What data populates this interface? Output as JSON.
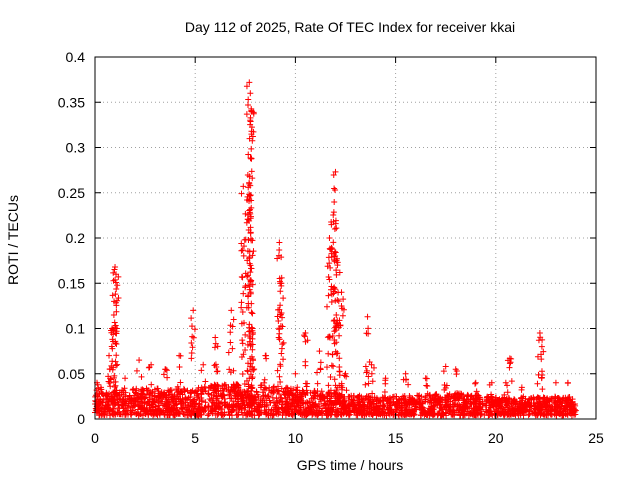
{
  "chart_data": {
    "type": "scatter",
    "title": "Day 112 of 2025, Rate Of TEC Index for receiver kkai",
    "xlabel": "GPS time / hours",
    "ylabel": "ROTI / TECUs",
    "xlim": [
      0,
      25
    ],
    "ylim": [
      0,
      0.4
    ],
    "x_ticks": [
      "0",
      "5",
      "10",
      "15",
      "20",
      "25"
    ],
    "y_ticks": [
      "0",
      "0.05",
      "0.1",
      "0.15",
      "0.2",
      "0.25",
      "0.3",
      "0.35",
      "0.4"
    ],
    "grid": true,
    "marker": "plus",
    "color": "#ff0000",
    "peaks": [
      {
        "x": 0.1,
        "y": 0.04
      },
      {
        "x": 0.3,
        "y": 0.035
      },
      {
        "x": 0.7,
        "y": 0.07
      },
      {
        "x": 0.85,
        "y": 0.1
      },
      {
        "x": 1.0,
        "y": 0.168
      },
      {
        "x": 1.05,
        "y": 0.16
      },
      {
        "x": 0.95,
        "y": 0.13
      },
      {
        "x": 1.5,
        "y": 0.045
      },
      {
        "x": 2.2,
        "y": 0.065
      },
      {
        "x": 2.8,
        "y": 0.06
      },
      {
        "x": 3.5,
        "y": 0.055
      },
      {
        "x": 4.2,
        "y": 0.07
      },
      {
        "x": 4.9,
        "y": 0.12
      },
      {
        "x": 5.4,
        "y": 0.06
      },
      {
        "x": 6.0,
        "y": 0.09
      },
      {
        "x": 6.8,
        "y": 0.12
      },
      {
        "x": 7.4,
        "y": 0.257
      },
      {
        "x": 7.7,
        "y": 0.372
      },
      {
        "x": 7.75,
        "y": 0.36
      },
      {
        "x": 7.8,
        "y": 0.34
      },
      {
        "x": 7.85,
        "y": 0.1
      },
      {
        "x": 8.5,
        "y": 0.07
      },
      {
        "x": 9.2,
        "y": 0.195
      },
      {
        "x": 9.3,
        "y": 0.15
      },
      {
        "x": 10.0,
        "y": 0.05
      },
      {
        "x": 10.5,
        "y": 0.095
      },
      {
        "x": 11.2,
        "y": 0.075
      },
      {
        "x": 11.7,
        "y": 0.2
      },
      {
        "x": 11.9,
        "y": 0.218
      },
      {
        "x": 12.0,
        "y": 0.273
      },
      {
        "x": 12.1,
        "y": 0.17
      },
      {
        "x": 12.3,
        "y": 0.14
      },
      {
        "x": 12.5,
        "y": 0.05
      },
      {
        "x": 13.6,
        "y": 0.113
      },
      {
        "x": 13.8,
        "y": 0.06
      },
      {
        "x": 14.5,
        "y": 0.045
      },
      {
        "x": 15.5,
        "y": 0.05
      },
      {
        "x": 16.5,
        "y": 0.045
      },
      {
        "x": 17.5,
        "y": 0.058
      },
      {
        "x": 18.0,
        "y": 0.055
      },
      {
        "x": 19.0,
        "y": 0.04
      },
      {
        "x": 19.8,
        "y": 0.04
      },
      {
        "x": 20.5,
        "y": 0.04
      },
      {
        "x": 20.7,
        "y": 0.067
      },
      {
        "x": 21.3,
        "y": 0.035
      },
      {
        "x": 22.2,
        "y": 0.095
      },
      {
        "x": 22.3,
        "y": 0.08
      },
      {
        "x": 23.0,
        "y": 0.04
      },
      {
        "x": 23.6,
        "y": 0.04
      }
    ],
    "baseline": [
      {
        "x": 0.0,
        "y": 0.025
      },
      {
        "x": 2.0,
        "y": 0.03
      },
      {
        "x": 4.0,
        "y": 0.03
      },
      {
        "x": 6.0,
        "y": 0.035
      },
      {
        "x": 8.0,
        "y": 0.035
      },
      {
        "x": 10.0,
        "y": 0.03
      },
      {
        "x": 12.0,
        "y": 0.025
      },
      {
        "x": 14.0,
        "y": 0.02
      },
      {
        "x": 16.0,
        "y": 0.022
      },
      {
        "x": 18.0,
        "y": 0.025
      },
      {
        "x": 20.0,
        "y": 0.02
      },
      {
        "x": 22.0,
        "y": 0.02
      },
      {
        "x": 24.0,
        "y": 0.02
      }
    ]
  }
}
